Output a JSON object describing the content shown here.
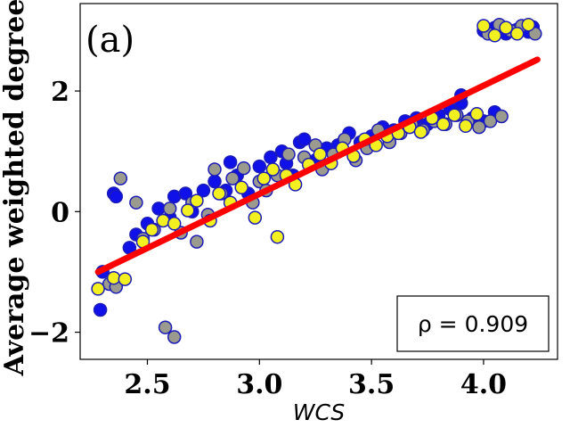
{
  "chart_data": {
    "type": "scatter",
    "panel_label": "(a)",
    "xlabel": "WCS",
    "ylabel": "Average weighted degree",
    "xlim": [
      2.2,
      4.33
    ],
    "ylim": [
      -2.45,
      3.45
    ],
    "x_ticks": [
      2.5,
      3.0,
      3.5,
      4.0
    ],
    "x_tick_labels": [
      "2.5",
      "3.0",
      "3.5",
      "4.0"
    ],
    "y_ticks": [
      -2,
      0,
      2
    ],
    "y_tick_labels": [
      "−2",
      "0",
      "2"
    ],
    "annotation": "ρ = 0.909",
    "grid": false,
    "fit_line": {
      "x": [
        2.28,
        4.24
      ],
      "y": [
        -1.0,
        2.52
      ],
      "color": "#ff0000"
    },
    "series": [
      {
        "marker_fill": "#1010e8",
        "edge_color": "#1c1cb8",
        "points": [
          [
            2.29,
            -1.63
          ],
          [
            2.3,
            -1.0
          ],
          [
            2.35,
            0.3
          ],
          [
            2.36,
            0.25
          ],
          [
            2.42,
            -0.6
          ],
          [
            2.45,
            -0.38
          ],
          [
            2.5,
            -0.2
          ],
          [
            2.55,
            0.05
          ],
          [
            2.6,
            -0.1
          ],
          [
            2.62,
            0.25
          ],
          [
            2.67,
            0.3
          ],
          [
            2.7,
            0.0
          ],
          [
            2.75,
            0.35
          ],
          [
            2.8,
            0.5
          ],
          [
            2.85,
            0.35
          ],
          [
            2.87,
            0.82
          ],
          [
            2.9,
            0.6
          ],
          [
            2.95,
            0.3
          ],
          [
            3.0,
            0.75
          ],
          [
            3.05,
            0.9
          ],
          [
            3.1,
            1.0
          ],
          [
            3.12,
            0.8
          ],
          [
            3.15,
            0.6
          ],
          [
            3.18,
            1.15
          ],
          [
            3.2,
            1.2
          ],
          [
            3.25,
            0.85
          ],
          [
            3.3,
            1.05
          ],
          [
            3.35,
            1.1
          ],
          [
            3.4,
            1.3
          ],
          [
            3.45,
            1.15
          ],
          [
            3.5,
            1.25
          ],
          [
            3.55,
            1.4
          ],
          [
            3.6,
            1.35
          ],
          [
            3.65,
            1.5
          ],
          [
            3.7,
            1.55
          ],
          [
            3.75,
            1.45
          ],
          [
            3.8,
            1.6
          ],
          [
            3.85,
            1.7
          ],
          [
            3.9,
            1.8
          ],
          [
            3.9,
            1.93
          ],
          [
            3.95,
            1.55
          ],
          [
            4.0,
            1.5
          ],
          [
            4.05,
            1.65
          ],
          [
            4.0,
            3.0
          ],
          [
            4.05,
            3.05
          ],
          [
            4.1,
            2.95
          ],
          [
            4.15,
            3.02
          ],
          [
            4.2,
            2.98
          ],
          [
            4.22,
            3.06
          ]
        ]
      },
      {
        "marker_fill": "#9a9a8e",
        "edge_color": "#1c1cb8",
        "points": [
          [
            2.33,
            -1.2
          ],
          [
            2.36,
            -1.25
          ],
          [
            2.38,
            0.55
          ],
          [
            2.45,
            0.15
          ],
          [
            2.48,
            -0.45
          ],
          [
            2.53,
            -0.3
          ],
          [
            2.58,
            -1.92
          ],
          [
            2.62,
            -2.08
          ],
          [
            2.6,
            0.05
          ],
          [
            2.65,
            -0.35
          ],
          [
            2.7,
            0.15
          ],
          [
            2.72,
            -0.5
          ],
          [
            2.77,
            -0.05
          ],
          [
            2.8,
            0.7
          ],
          [
            2.83,
            0.3
          ],
          [
            2.88,
            0.55
          ],
          [
            2.93,
            0.72
          ],
          [
            2.97,
            0.15
          ],
          [
            3.0,
            0.5
          ],
          [
            3.03,
            0.35
          ],
          [
            3.08,
            0.6
          ],
          [
            3.13,
            0.95
          ],
          [
            3.2,
            0.9
          ],
          [
            3.25,
            1.1
          ],
          [
            3.28,
            0.7
          ],
          [
            3.33,
            0.95
          ],
          [
            3.38,
            1.2
          ],
          [
            3.43,
            0.85
          ],
          [
            3.48,
            1.05
          ],
          [
            3.53,
            1.35
          ],
          [
            3.58,
            1.15
          ],
          [
            3.63,
            1.3
          ],
          [
            3.68,
            1.45
          ],
          [
            3.73,
            1.35
          ],
          [
            3.78,
            1.5
          ],
          [
            3.83,
            1.45
          ],
          [
            3.88,
            1.6
          ],
          [
            3.93,
            1.5
          ],
          [
            3.98,
            1.4
          ],
          [
            4.03,
            1.5
          ],
          [
            4.08,
            1.58
          ],
          [
            4.02,
            2.95
          ],
          [
            4.07,
            3.1
          ],
          [
            4.12,
            3.0
          ],
          [
            4.17,
            3.08
          ],
          [
            4.23,
            2.95
          ]
        ]
      },
      {
        "marker_fill": "#f2f020",
        "edge_color": "#1c1cb8",
        "points": [
          [
            2.28,
            -1.28
          ],
          [
            2.35,
            -1.1
          ],
          [
            2.4,
            -1.12
          ],
          [
            2.48,
            -0.5
          ],
          [
            2.52,
            -0.3
          ],
          [
            2.57,
            -0.15
          ],
          [
            2.62,
            -0.2
          ],
          [
            2.68,
            0.02
          ],
          [
            2.72,
            0.18
          ],
          [
            2.78,
            -0.15
          ],
          [
            2.82,
            0.3
          ],
          [
            2.87,
            0.15
          ],
          [
            2.92,
            0.4
          ],
          [
            2.98,
            -0.1
          ],
          [
            3.02,
            0.55
          ],
          [
            3.06,
            0.7
          ],
          [
            3.08,
            -0.42
          ],
          [
            3.12,
            0.6
          ],
          [
            3.16,
            0.45
          ],
          [
            3.22,
            0.78
          ],
          [
            3.27,
            0.95
          ],
          [
            3.32,
            0.8
          ],
          [
            3.37,
            1.05
          ],
          [
            3.42,
            0.92
          ],
          [
            3.47,
            1.2
          ],
          [
            3.52,
            1.1
          ],
          [
            3.57,
            1.25
          ],
          [
            3.62,
            1.3
          ],
          [
            3.67,
            1.4
          ],
          [
            3.72,
            1.32
          ],
          [
            3.77,
            1.55
          ],
          [
            3.82,
            1.45
          ],
          [
            3.87,
            1.6
          ],
          [
            3.92,
            1.42
          ],
          [
            3.97,
            1.62
          ],
          [
            4.0,
            3.08
          ],
          [
            4.05,
            2.92
          ],
          [
            4.1,
            3.05
          ],
          [
            4.15,
            2.95
          ],
          [
            4.2,
            3.1
          ]
        ]
      }
    ]
  }
}
